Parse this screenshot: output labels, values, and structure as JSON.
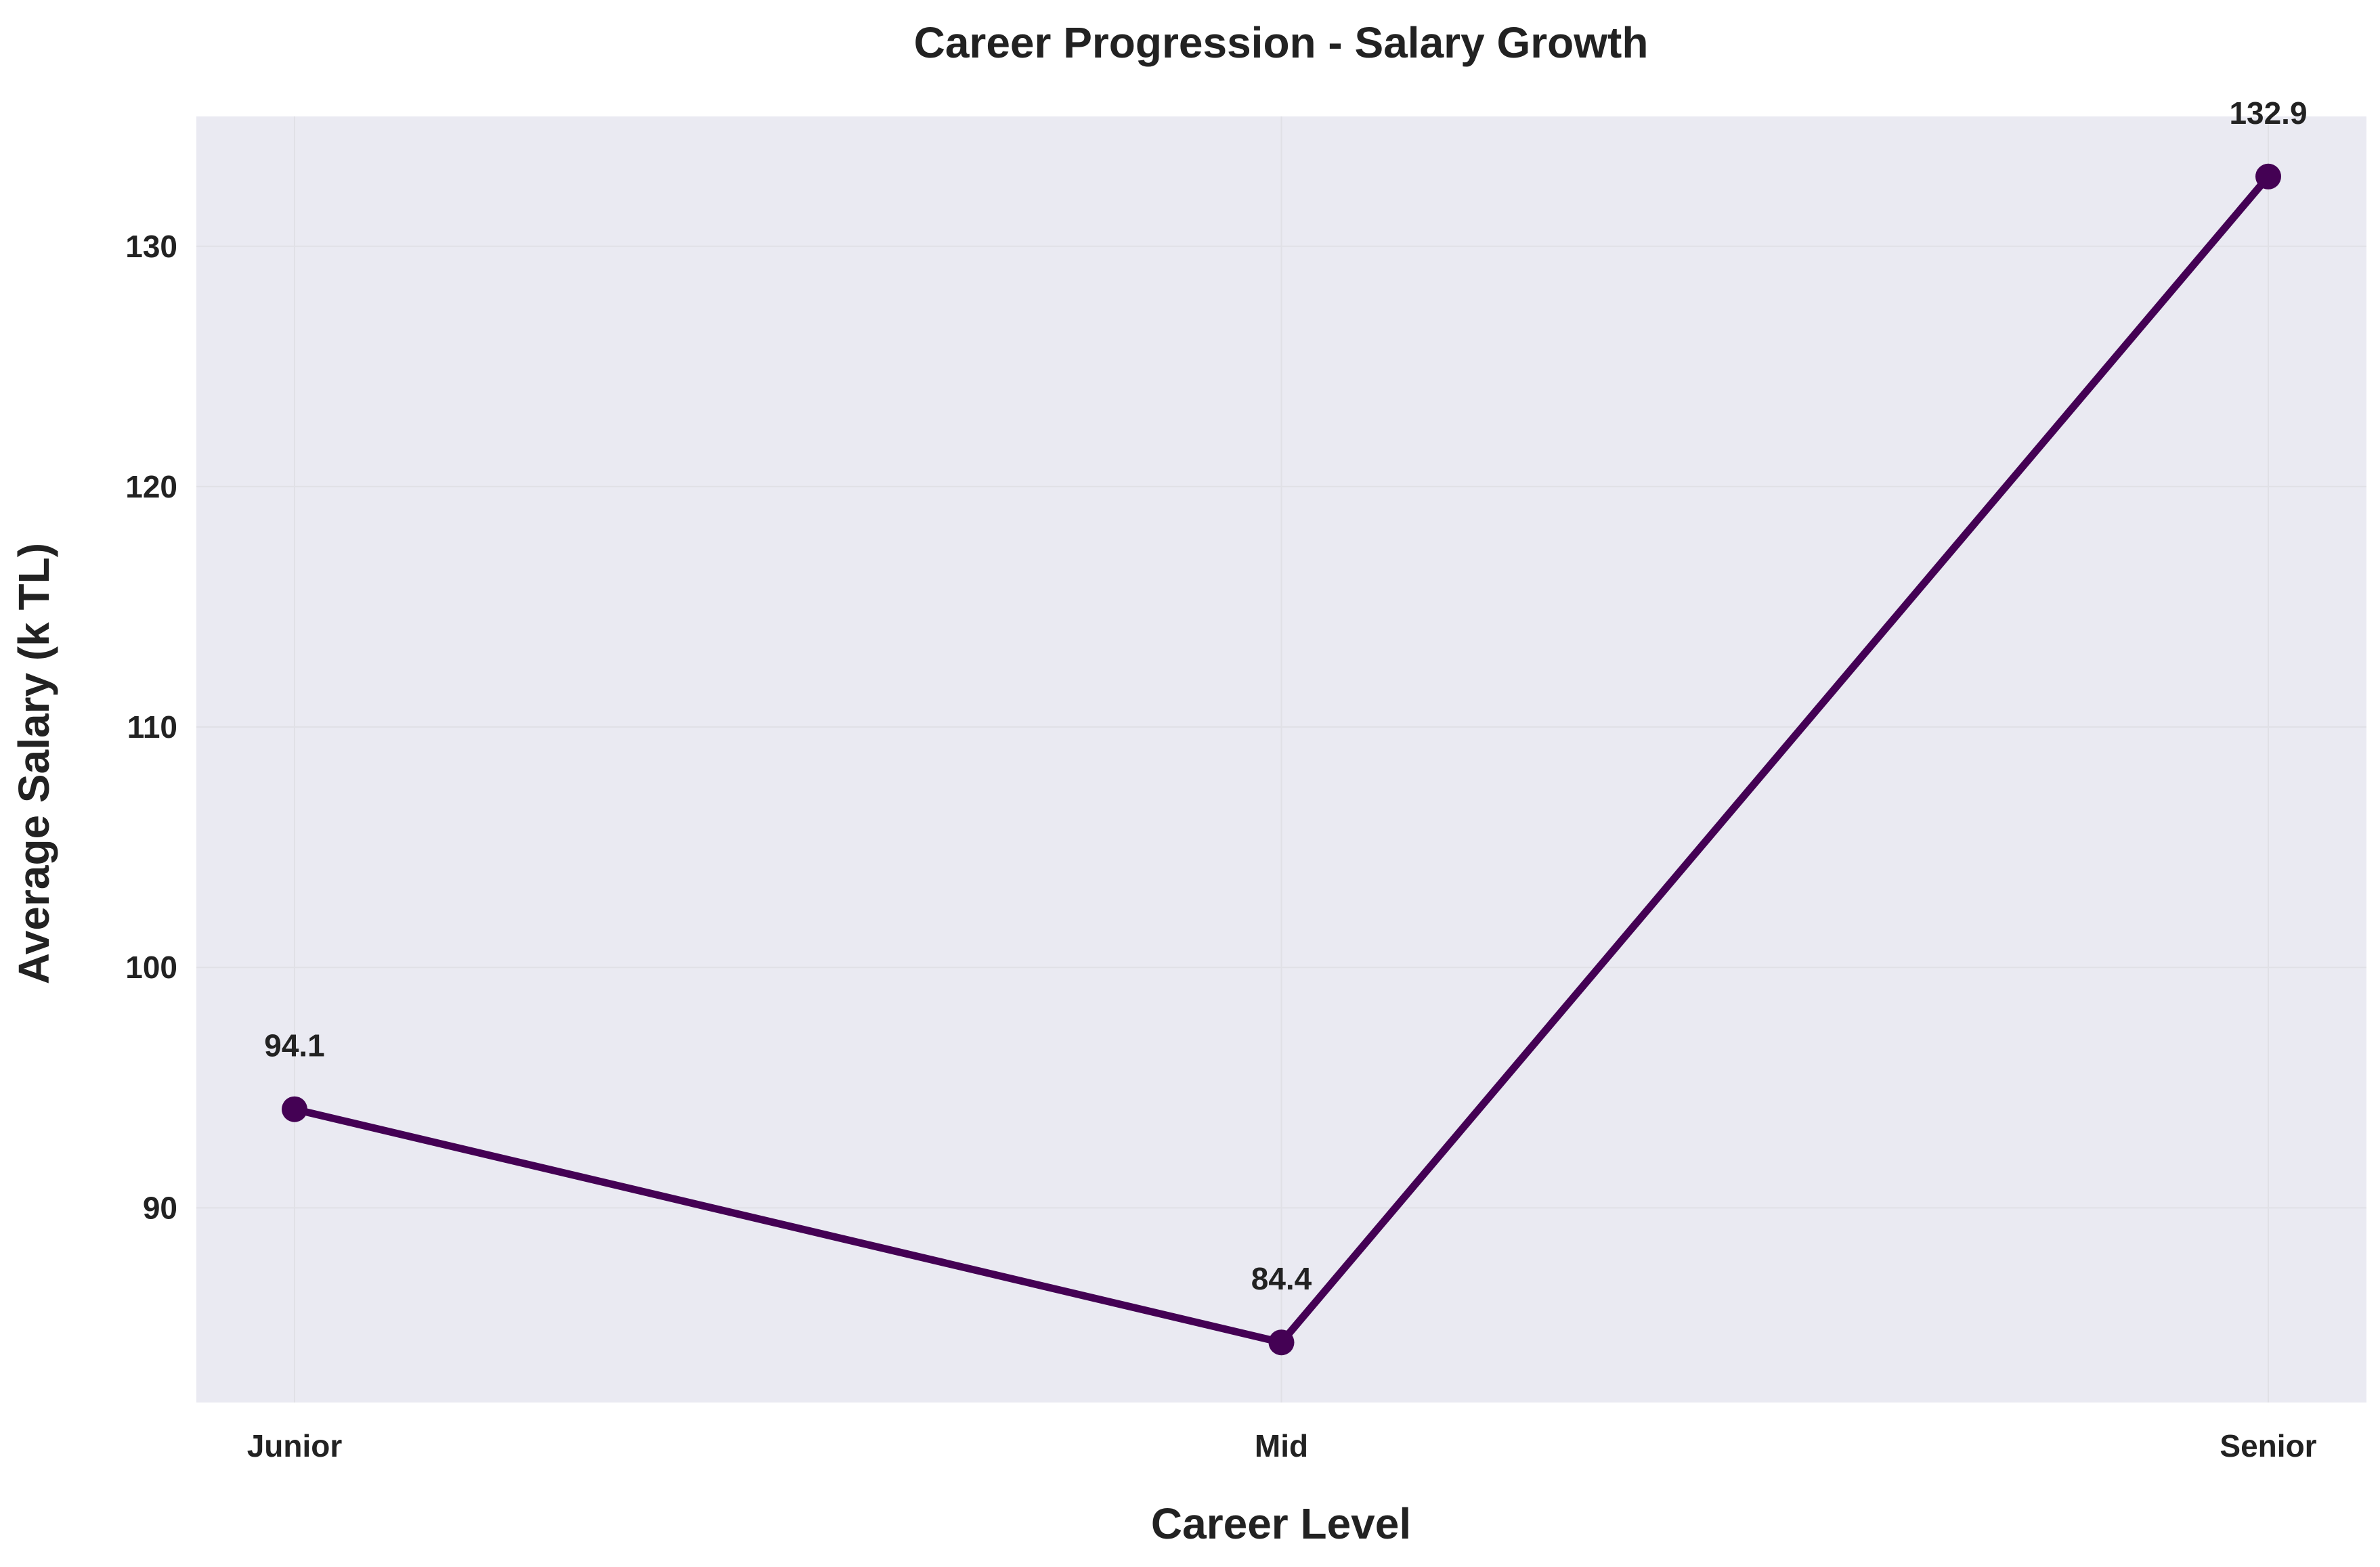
{
  "chart_data": {
    "type": "line",
    "title": "Career Progression - Salary Growth",
    "xlabel": "Career Level",
    "ylabel": "Average Salary (k TL)",
    "categories": [
      "Junior",
      "Mid",
      "Senior"
    ],
    "series": [
      {
        "values": [
          94.1,
          84.4,
          132.9
        ],
        "labels": [
          "94.1",
          "84.4",
          "132.9"
        ]
      }
    ],
    "ylim": [
      81.9,
      135.4
    ],
    "yticks": [
      90,
      100,
      110,
      120,
      130
    ],
    "ytick_labels": [
      "90",
      "100",
      "110",
      "120",
      "130"
    ],
    "grid": true,
    "legend": "none",
    "colors": {
      "line": "#440154",
      "plot_background": "#eaeaf2",
      "grid": "#e0e0e6",
      "text": "#222222"
    }
  }
}
